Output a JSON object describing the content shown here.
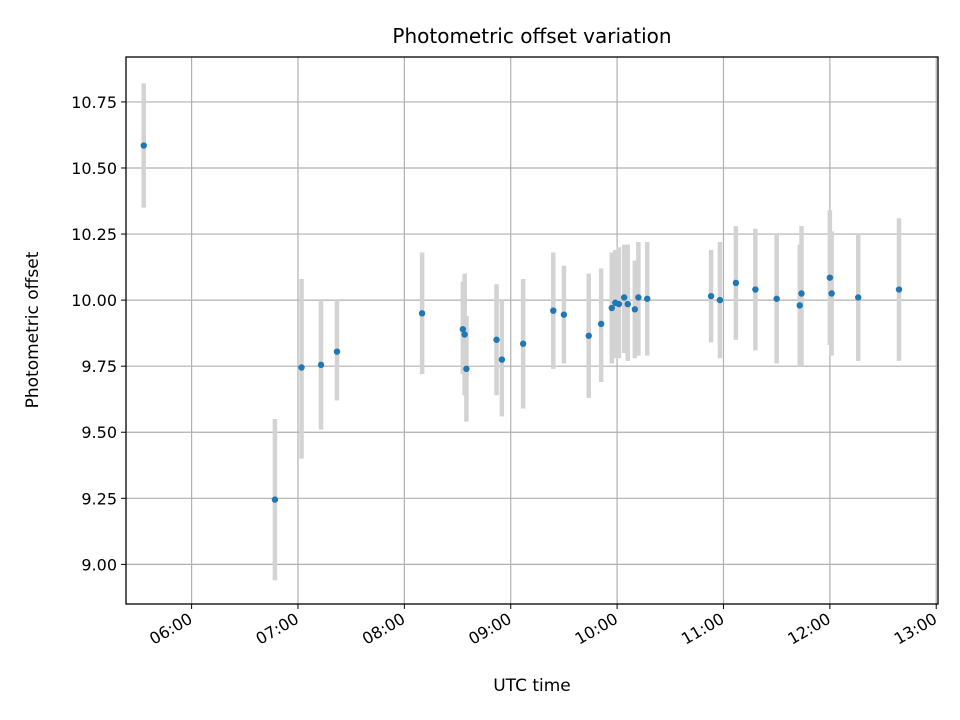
{
  "chart_data": {
    "type": "scatter",
    "title": "Photometric offset variation",
    "xlabel": "UTC time",
    "ylabel": "Photometric offset",
    "grid": true,
    "xlim": [
      "05:23",
      "13:01"
    ],
    "ylim": [
      8.85,
      10.92
    ],
    "x_ticks": [
      "06:00",
      "07:00",
      "08:00",
      "09:00",
      "10:00",
      "11:00",
      "12:00",
      "13:00"
    ],
    "y_ticks": [
      9.0,
      9.25,
      9.5,
      9.75,
      10.0,
      10.25,
      10.5,
      10.75
    ],
    "y_tick_labels": [
      "9.00",
      "9.25",
      "9.50",
      "9.75",
      "10.00",
      "10.25",
      "10.50",
      "10.75"
    ],
    "colors": {
      "point": "#1f77b4",
      "error_bar": "#d3d3d3",
      "grid": "#b0b0b0"
    },
    "points": [
      {
        "t": "05:33",
        "y": 10.585,
        "lo": 10.35,
        "hi": 10.82
      },
      {
        "t": "06:47",
        "y": 9.245,
        "lo": 8.94,
        "hi": 9.55
      },
      {
        "t": "07:02",
        "y": 9.745,
        "lo": 9.4,
        "hi": 10.08
      },
      {
        "t": "07:13",
        "y": 9.755,
        "lo": 9.51,
        "hi": 10.0
      },
      {
        "t": "07:22",
        "y": 9.805,
        "lo": 9.62,
        "hi": 10.0
      },
      {
        "t": "08:10",
        "y": 9.95,
        "lo": 9.72,
        "hi": 10.18
      },
      {
        "t": "08:33",
        "y": 9.89,
        "lo": 9.72,
        "hi": 10.07
      },
      {
        "t": "08:34",
        "y": 9.87,
        "lo": 9.64,
        "hi": 10.1
      },
      {
        "t": "08:35",
        "y": 9.74,
        "lo": 9.54,
        "hi": 9.94
      },
      {
        "t": "08:52",
        "y": 9.85,
        "lo": 9.64,
        "hi": 10.06
      },
      {
        "t": "08:55",
        "y": 9.775,
        "lo": 9.56,
        "hi": 10.0
      },
      {
        "t": "09:07",
        "y": 9.835,
        "lo": 9.59,
        "hi": 10.08
      },
      {
        "t": "09:24",
        "y": 9.96,
        "lo": 9.74,
        "hi": 10.18
      },
      {
        "t": "09:30",
        "y": 9.945,
        "lo": 9.76,
        "hi": 10.13
      },
      {
        "t": "09:44",
        "y": 9.865,
        "lo": 9.63,
        "hi": 10.1
      },
      {
        "t": "09:51",
        "y": 9.91,
        "lo": 9.69,
        "hi": 10.12
      },
      {
        "t": "09:57",
        "y": 9.97,
        "lo": 9.76,
        "hi": 10.18
      },
      {
        "t": "09:59",
        "y": 9.99,
        "lo": 9.78,
        "hi": 10.19
      },
      {
        "t": "10:01",
        "y": 9.985,
        "lo": 9.78,
        "hi": 10.2
      },
      {
        "t": "10:04",
        "y": 10.01,
        "lo": 9.8,
        "hi": 10.21
      },
      {
        "t": "10:06",
        "y": 9.985,
        "lo": 9.77,
        "hi": 10.21
      },
      {
        "t": "10:10",
        "y": 9.965,
        "lo": 9.78,
        "hi": 10.15
      },
      {
        "t": "10:12",
        "y": 10.01,
        "lo": 9.79,
        "hi": 10.22
      },
      {
        "t": "10:17",
        "y": 10.005,
        "lo": 9.79,
        "hi": 10.22
      },
      {
        "t": "10:53",
        "y": 10.015,
        "lo": 9.84,
        "hi": 10.19
      },
      {
        "t": "10:58",
        "y": 10.0,
        "lo": 9.78,
        "hi": 10.22
      },
      {
        "t": "11:07",
        "y": 10.065,
        "lo": 9.85,
        "hi": 10.28
      },
      {
        "t": "11:18",
        "y": 10.04,
        "lo": 9.81,
        "hi": 10.27
      },
      {
        "t": "11:30",
        "y": 10.005,
        "lo": 9.76,
        "hi": 10.25
      },
      {
        "t": "11:43",
        "y": 9.98,
        "lo": 9.75,
        "hi": 10.21
      },
      {
        "t": "11:44",
        "y": 10.025,
        "lo": 9.75,
        "hi": 10.28
      },
      {
        "t": "12:00",
        "y": 10.085,
        "lo": 9.83,
        "hi": 10.34
      },
      {
        "t": "12:01",
        "y": 10.025,
        "lo": 9.79,
        "hi": 10.26
      },
      {
        "t": "12:16",
        "y": 10.01,
        "lo": 9.77,
        "hi": 10.25
      },
      {
        "t": "12:39",
        "y": 10.04,
        "lo": 9.77,
        "hi": 10.31
      }
    ]
  }
}
